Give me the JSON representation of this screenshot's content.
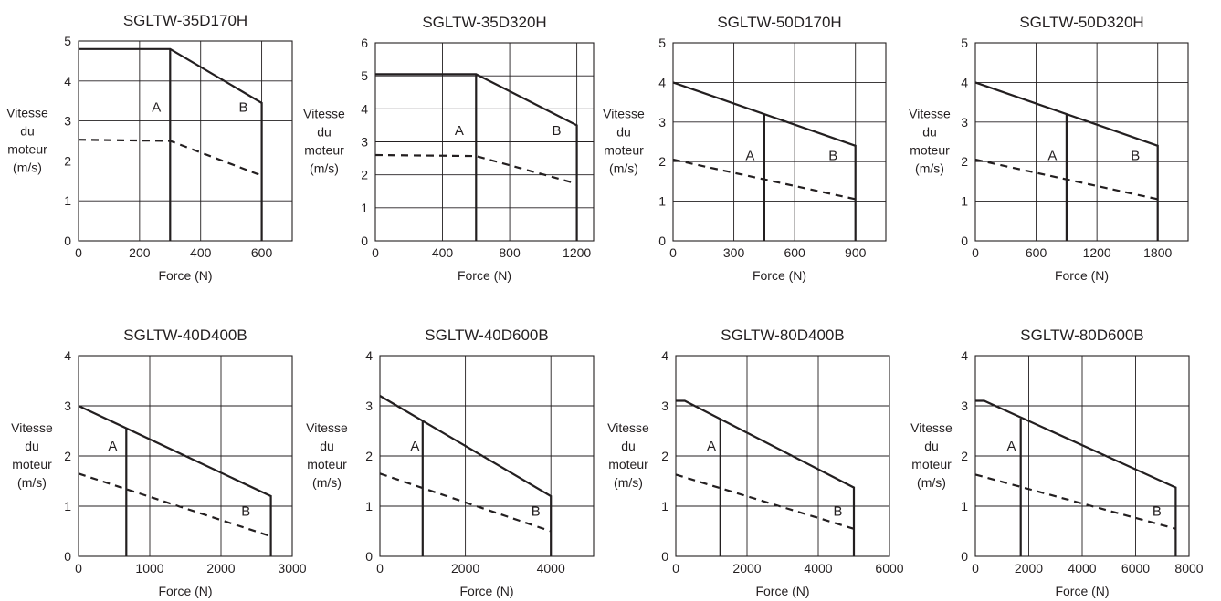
{
  "chart_data": [
    {
      "type": "line",
      "title": "SGLTW-35D170H",
      "xlabel": "Force (N)",
      "ylabel": [
        "Vitesse",
        "du",
        "moteur",
        "(m/s)"
      ],
      "xlim": [
        0,
        700
      ],
      "ylim": [
        0,
        5
      ],
      "xticks": [
        0,
        200,
        400,
        600
      ],
      "yticks": [
        0,
        1,
        2,
        3,
        4,
        5
      ],
      "grid": true,
      "series": [
        {
          "style": "solid",
          "points": [
            [
              0,
              4.8
            ],
            [
              300,
              4.8
            ],
            [
              600,
              3.45
            ],
            [
              600,
              0
            ]
          ]
        },
        {
          "style": "solid",
          "points": [
            [
              300,
              4.8
            ],
            [
              300,
              0
            ]
          ]
        },
        {
          "style": "dashed",
          "points": [
            [
              0,
              2.53
            ],
            [
              300,
              2.5
            ],
            [
              600,
              1.63
            ]
          ]
        }
      ],
      "annotations": [
        {
          "text": "A",
          "x": 255,
          "y": 3.35
        },
        {
          "text": "B",
          "x": 540,
          "y": 3.35
        }
      ]
    },
    {
      "type": "line",
      "title": "SGLTW-35D320H",
      "xlabel": "Force (N)",
      "ylabel": [
        "Vitesse",
        "du",
        "moteur",
        "(m/s)"
      ],
      "xlim": [
        0,
        1300
      ],
      "ylim": [
        0,
        6
      ],
      "xticks": [
        0,
        400,
        800,
        1200
      ],
      "yticks": [
        0,
        1,
        2,
        3,
        4,
        5,
        6
      ],
      "grid": true,
      "series": [
        {
          "style": "solid",
          "points": [
            [
              0,
              5.05
            ],
            [
              600,
              5.05
            ],
            [
              1200,
              3.5
            ],
            [
              1200,
              0
            ]
          ]
        },
        {
          "style": "solid",
          "points": [
            [
              600,
              5.05
            ],
            [
              600,
              0
            ]
          ]
        },
        {
          "style": "dashed",
          "points": [
            [
              0,
              2.6
            ],
            [
              600,
              2.57
            ],
            [
              1200,
              1.73
            ]
          ]
        }
      ],
      "annotations": [
        {
          "text": "A",
          "x": 500,
          "y": 3.35
        },
        {
          "text": "B",
          "x": 1080,
          "y": 3.35
        }
      ]
    },
    {
      "type": "line",
      "title": "SGLTW-50D170H",
      "xlabel": "Force (N)",
      "ylabel": [
        "Vitesse",
        "du",
        "moteur",
        "(m/s)"
      ],
      "xlim": [
        0,
        1050
      ],
      "ylim": [
        0,
        5
      ],
      "xticks": [
        0,
        300,
        600,
        900
      ],
      "yticks": [
        0,
        1,
        2,
        3,
        4,
        5
      ],
      "grid": true,
      "series": [
        {
          "style": "solid",
          "points": [
            [
              0,
              4.0
            ],
            [
              900,
              2.4
            ],
            [
              900,
              0
            ]
          ]
        },
        {
          "style": "solid",
          "points": [
            [
              450,
              3.2
            ],
            [
              450,
              0
            ]
          ]
        },
        {
          "style": "dashed",
          "points": [
            [
              0,
              2.05
            ],
            [
              900,
              1.05
            ]
          ]
        }
      ],
      "annotations": [
        {
          "text": "A",
          "x": 380,
          "y": 2.15
        },
        {
          "text": "B",
          "x": 790,
          "y": 2.15
        }
      ]
    },
    {
      "type": "line",
      "title": "SGLTW-50D320H",
      "xlabel": "Force (N)",
      "ylabel": [
        "Vitesse",
        "du",
        "moteur",
        "(m/s)"
      ],
      "xlim": [
        0,
        2100
      ],
      "ylim": [
        0,
        5
      ],
      "xticks": [
        0,
        600,
        1200,
        1800
      ],
      "yticks": [
        0,
        1,
        2,
        3,
        4,
        5
      ],
      "grid": true,
      "series": [
        {
          "style": "solid",
          "points": [
            [
              0,
              4.0
            ],
            [
              1800,
              2.4
            ],
            [
              1800,
              0
            ]
          ]
        },
        {
          "style": "solid",
          "points": [
            [
              900,
              3.2
            ],
            [
              900,
              0
            ]
          ]
        },
        {
          "style": "dashed",
          "points": [
            [
              0,
              2.05
            ],
            [
              1800,
              1.05
            ]
          ]
        }
      ],
      "annotations": [
        {
          "text": "A",
          "x": 760,
          "y": 2.15
        },
        {
          "text": "B",
          "x": 1580,
          "y": 2.15
        }
      ]
    },
    {
      "type": "line",
      "title": "SGLTW-40D400B",
      "xlabel": "Force (N)",
      "ylabel": [
        "Vitesse",
        "du",
        "moteur",
        "(m/s)"
      ],
      "xlim": [
        0,
        3000
      ],
      "ylim": [
        0,
        4
      ],
      "xticks": [
        0,
        1000,
        2000,
        3000
      ],
      "yticks": [
        0,
        1,
        2,
        3,
        4
      ],
      "grid": true,
      "series": [
        {
          "style": "solid",
          "points": [
            [
              0,
              3.0
            ],
            [
              2700,
              1.2
            ],
            [
              2700,
              0
            ]
          ]
        },
        {
          "style": "solid",
          "points": [
            [
              670,
              2.55
            ],
            [
              670,
              0
            ]
          ]
        },
        {
          "style": "dashed",
          "points": [
            [
              0,
              1.65
            ],
            [
              2700,
              0.4
            ]
          ]
        }
      ],
      "annotations": [
        {
          "text": "A",
          "x": 480,
          "y": 2.2
        },
        {
          "text": "B",
          "x": 2350,
          "y": 0.9
        }
      ]
    },
    {
      "type": "line",
      "title": "SGLTW-40D600B",
      "xlabel": "Force (N)",
      "ylabel": [
        "Vitesse",
        "du",
        "moteur",
        "(m/s)"
      ],
      "xlim": [
        0,
        5000
      ],
      "ylim": [
        0,
        4
      ],
      "xticks": [
        0,
        2000,
        4000
      ],
      "yticks": [
        0,
        1,
        2,
        3,
        4
      ],
      "grid": true,
      "series": [
        {
          "style": "solid",
          "points": [
            [
              0,
              3.2
            ],
            [
              4000,
              1.2
            ],
            [
              4000,
              0
            ]
          ]
        },
        {
          "style": "solid",
          "points": [
            [
              1000,
              2.7
            ],
            [
              1000,
              0
            ]
          ]
        },
        {
          "style": "dashed",
          "points": [
            [
              0,
              1.65
            ],
            [
              4000,
              0.5
            ]
          ]
        }
      ],
      "annotations": [
        {
          "text": "A",
          "x": 820,
          "y": 2.2
        },
        {
          "text": "B",
          "x": 3650,
          "y": 0.9
        }
      ]
    },
    {
      "type": "line",
      "title": "SGLTW-80D400B",
      "xlabel": "Force (N)",
      "ylabel": [
        "Vitesse",
        "du",
        "moteur",
        "(m/s)"
      ],
      "xlim": [
        0,
        6000
      ],
      "ylim": [
        0,
        4
      ],
      "xticks": [
        0,
        2000,
        4000,
        6000
      ],
      "yticks": [
        0,
        1,
        2,
        3,
        4
      ],
      "grid": true,
      "series": [
        {
          "style": "solid",
          "points": [
            [
              0,
              3.1
            ],
            [
              250,
              3.1
            ],
            [
              5000,
              1.37
            ],
            [
              5000,
              0
            ]
          ]
        },
        {
          "style": "solid",
          "points": [
            [
              1250,
              2.75
            ],
            [
              1250,
              0
            ]
          ]
        },
        {
          "style": "dashed",
          "points": [
            [
              0,
              1.63
            ],
            [
              5000,
              0.55
            ]
          ]
        }
      ],
      "annotations": [
        {
          "text": "A",
          "x": 1000,
          "y": 2.2
        },
        {
          "text": "B",
          "x": 4550,
          "y": 0.9
        }
      ]
    },
    {
      "type": "line",
      "title": "SGLTW-80D600B",
      "xlabel": "Force (N)",
      "ylabel": [
        "Vitesse",
        "du",
        "moteur",
        "(m/s)"
      ],
      "xlim": [
        0,
        8000
      ],
      "ylim": [
        0,
        4
      ],
      "xticks": [
        0,
        2000,
        4000,
        6000,
        8000
      ],
      "yticks": [
        0,
        1,
        2,
        3,
        4
      ],
      "grid": true,
      "series": [
        {
          "style": "solid",
          "points": [
            [
              0,
              3.1
            ],
            [
              330,
              3.1
            ],
            [
              7500,
              1.37
            ],
            [
              7500,
              0
            ]
          ]
        },
        {
          "style": "solid",
          "points": [
            [
              1700,
              2.75
            ],
            [
              1700,
              0
            ]
          ]
        },
        {
          "style": "dashed",
          "points": [
            [
              0,
              1.63
            ],
            [
              7500,
              0.55
            ]
          ]
        }
      ],
      "annotations": [
        {
          "text": "A",
          "x": 1350,
          "y": 2.2
        },
        {
          "text": "B",
          "x": 6800,
          "y": 0.9
        }
      ]
    }
  ]
}
